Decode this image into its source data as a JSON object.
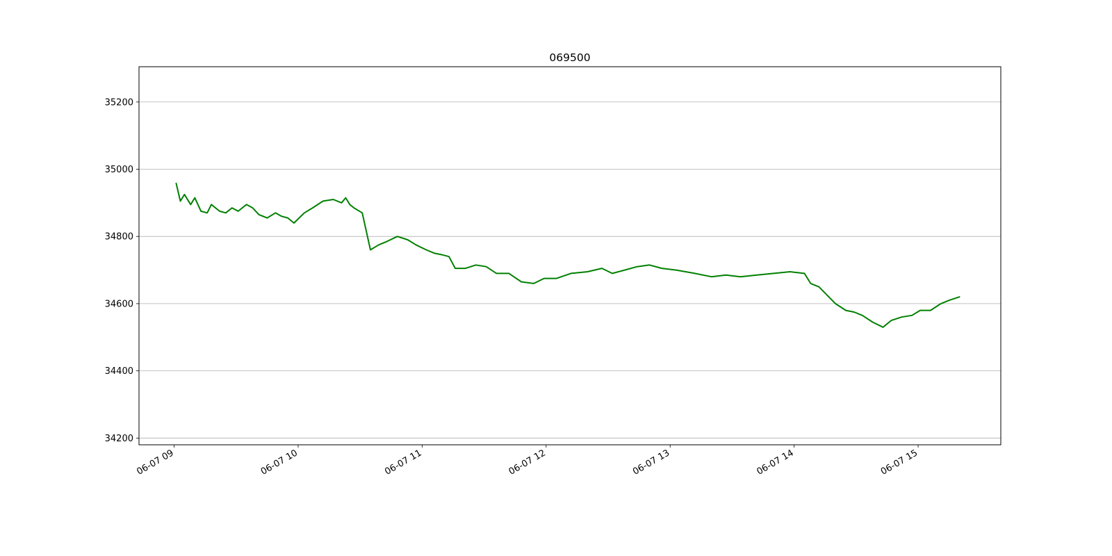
{
  "chart_data": {
    "type": "line",
    "title": "069500",
    "xlabel": "",
    "ylabel": "",
    "grid": "horizontal",
    "line_color": "#008000",
    "xlim": [
      "06-07 08:43",
      "06-07 15:40"
    ],
    "ylim": [
      34180,
      35305
    ],
    "x_ticks": [
      "06-07 09",
      "06-07 10",
      "06-07 11",
      "06-07 12",
      "06-07 13",
      "06-07 14",
      "06-07 15"
    ],
    "y_ticks": [
      34200,
      34400,
      34600,
      34800,
      35000,
      35200
    ],
    "x": [
      "06-07 09:01",
      "06-07 09:03",
      "06-07 09:05",
      "06-07 09:08",
      "06-07 09:10",
      "06-07 09:13",
      "06-07 09:16",
      "06-07 09:18",
      "06-07 09:22",
      "06-07 09:25",
      "06-07 09:28",
      "06-07 09:31",
      "06-07 09:35",
      "06-07 09:38",
      "06-07 09:41",
      "06-07 09:45",
      "06-07 09:49",
      "06-07 09:52",
      "06-07 09:55",
      "06-07 09:58",
      "06-07 10:03",
      "06-07 10:07",
      "06-07 10:12",
      "06-07 10:17",
      "06-07 10:21",
      "06-07 10:23",
      "06-07 10:25",
      "06-07 10:27",
      "06-07 10:31",
      "06-07 10:35",
      "06-07 10:39",
      "06-07 10:43",
      "06-07 10:48",
      "06-07 10:53",
      "06-07 10:57",
      "06-07 11:02",
      "06-07 11:06",
      "06-07 11:10",
      "06-07 11:13",
      "06-07 11:16",
      "06-07 11:21",
      "06-07 11:26",
      "06-07 11:31",
      "06-07 11:36",
      "06-07 11:42",
      "06-07 11:48",
      "06-07 11:54",
      "06-07 11:59",
      "06-07 12:05",
      "06-07 12:12",
      "06-07 12:20",
      "06-07 12:27",
      "06-07 12:32",
      "06-07 12:38",
      "06-07 12:44",
      "06-07 12:50",
      "06-07 12:56",
      "06-07 13:03",
      "06-07 13:12",
      "06-07 13:20",
      "06-07 13:27",
      "06-07 13:34",
      "06-07 13:42",
      "06-07 13:50",
      "06-07 13:58",
      "06-07 14:05",
      "06-07 14:08",
      "06-07 14:12",
      "06-07 14:16",
      "06-07 14:20",
      "06-07 14:25",
      "06-07 14:29",
      "06-07 14:33",
      "06-07 14:38",
      "06-07 14:43",
      "06-07 14:47",
      "06-07 14:52",
      "06-07 14:57",
      "06-07 15:01",
      "06-07 15:06",
      "06-07 15:11",
      "06-07 15:15",
      "06-07 15:20"
    ],
    "series": [
      {
        "values": [
          34958,
          34905,
          34925,
          34895,
          34915,
          34875,
          34870,
          34895,
          34875,
          34870,
          34885,
          34875,
          34895,
          34885,
          34865,
          34855,
          34870,
          34860,
          34855,
          34840,
          34870,
          34885,
          34905,
          34910,
          34900,
          34915,
          34895,
          34885,
          34870,
          34760,
          34775,
          34785,
          34800,
          34790,
          34775,
          34760,
          34750,
          34745,
          34740,
          34705,
          34705,
          34715,
          34710,
          34690,
          34690,
          34665,
          34660,
          34675,
          34675,
          34690,
          34695,
          34705,
          34690,
          34700,
          34710,
          34715,
          34705,
          34700,
          34690,
          34680,
          34685,
          34680,
          34685,
          34690,
          34695,
          34690,
          34660,
          34650,
          34625,
          34600,
          34580,
          34575,
          34565,
          34545,
          34530,
          34550,
          34560,
          34565,
          34580,
          34580,
          34600,
          34610,
          34620
        ]
      }
    ]
  }
}
